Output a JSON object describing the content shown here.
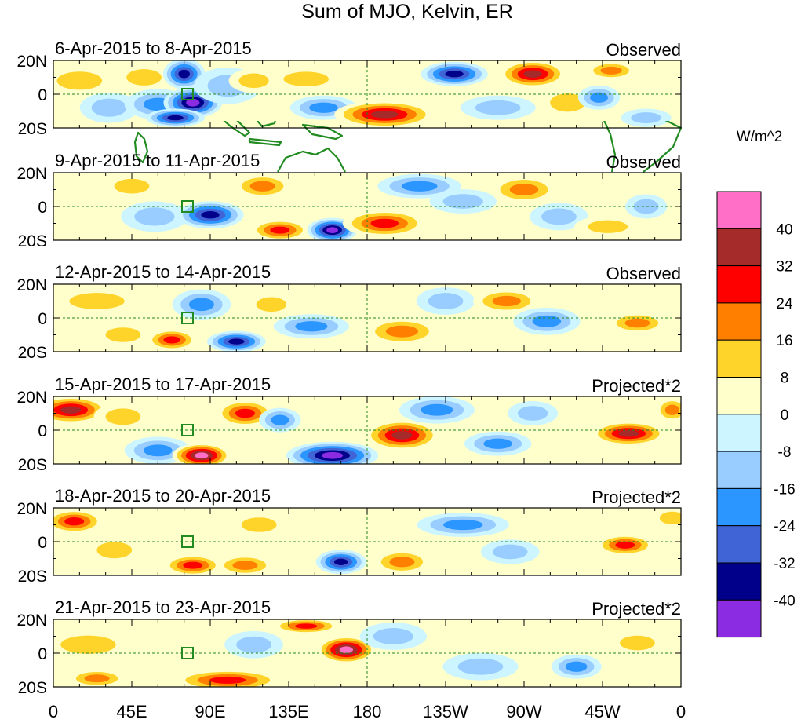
{
  "title": "Sum of MJO, Kelvin, ER",
  "lat_labels": [
    "20N",
    "0",
    "20S"
  ],
  "lon_labels": [
    "0",
    "45E",
    "90E",
    "135E",
    "180",
    "135W",
    "90W",
    "45W",
    "0"
  ],
  "panels": [
    {
      "date_range": "6-Apr-2015 to 8-Apr-2015",
      "status": "Observed"
    },
    {
      "date_range": "9-Apr-2015 to 11-Apr-2015",
      "status": "Observed"
    },
    {
      "date_range": "12-Apr-2015 to 14-Apr-2015",
      "status": "Observed"
    },
    {
      "date_range": "15-Apr-2015 to 17-Apr-2015",
      "status": "Projected*2"
    },
    {
      "date_range": "18-Apr-2015 to 20-Apr-2015",
      "status": "Projected*2"
    },
    {
      "date_range": "21-Apr-2015 to 23-Apr-2015",
      "status": "Projected*2"
    }
  ],
  "colorbar": {
    "units": "W/m^2",
    "levels": [
      "40",
      "32",
      "24",
      "16",
      "8",
      "0",
      "-8",
      "-16",
      "-24",
      "-32",
      "-40"
    ],
    "colors": [
      "#ff6ec7",
      "#a52a2a",
      "#ff0000",
      "#ff7f00",
      "#ffd42a",
      "#ffffcc",
      "#ccf5ff",
      "#99ccff",
      "#2b96ff",
      "#4064d6",
      "#00008b",
      "#8b2be2"
    ]
  },
  "coast_color": "#228b22",
  "anomalies": [
    [
      {
        "lon": 15,
        "lat": 8,
        "w": 18,
        "h": 10,
        "v": 10
      },
      {
        "lon": 32,
        "lat": -8,
        "w": 14,
        "h": 10,
        "v": -12
      },
      {
        "lon": 52,
        "lat": 10,
        "w": 14,
        "h": 9,
        "v": 12
      },
      {
        "lon": 60,
        "lat": -6,
        "w": 16,
        "h": 10,
        "v": -24
      },
      {
        "lon": 75,
        "lat": 12,
        "w": 10,
        "h": 10,
        "v": -36
      },
      {
        "lon": 80,
        "lat": -5,
        "w": 14,
        "h": 10,
        "v": -42
      },
      {
        "lon": 70,
        "lat": -14,
        "w": 14,
        "h": 6,
        "v": -34
      },
      {
        "lon": 100,
        "lat": 5,
        "w": 16,
        "h": 12,
        "v": -12
      },
      {
        "lon": 115,
        "lat": 8,
        "w": 12,
        "h": 8,
        "v": 10
      },
      {
        "lon": 145,
        "lat": 9,
        "w": 18,
        "h": 8,
        "v": 14
      },
      {
        "lon": 155,
        "lat": -8,
        "w": 16,
        "h": 8,
        "v": -18
      },
      {
        "lon": 190,
        "lat": -12,
        "w": 24,
        "h": 9,
        "v": 34
      },
      {
        "lon": 230,
        "lat": 12,
        "w": 16,
        "h": 8,
        "v": -34
      },
      {
        "lon": 255,
        "lat": -8,
        "w": 18,
        "h": 8,
        "v": -14
      },
      {
        "lon": 275,
        "lat": 12,
        "w": 16,
        "h": 9,
        "v": 36
      },
      {
        "lon": 295,
        "lat": -5,
        "w": 14,
        "h": 10,
        "v": 12
      },
      {
        "lon": 313,
        "lat": -2,
        "w": 10,
        "h": 8,
        "v": -20
      },
      {
        "lon": 320,
        "lat": 14,
        "w": 12,
        "h": 6,
        "v": 18
      },
      {
        "lon": 340,
        "lat": -14,
        "w": 12,
        "h": 6,
        "v": -14
      }
    ],
    [
      {
        "lon": 20,
        "lat": 12,
        "w": 16,
        "h": 8,
        "v": 8
      },
      {
        "lon": 45,
        "lat": 12,
        "w": 14,
        "h": 8,
        "v": 12
      },
      {
        "lon": 58,
        "lat": -6,
        "w": 16,
        "h": 10,
        "v": -14
      },
      {
        "lon": 90,
        "lat": -5,
        "w": 16,
        "h": 9,
        "v": -36
      },
      {
        "lon": 120,
        "lat": 12,
        "w": 14,
        "h": 8,
        "v": 20
      },
      {
        "lon": 130,
        "lat": -14,
        "w": 14,
        "h": 7,
        "v": 26
      },
      {
        "lon": 160,
        "lat": -14,
        "w": 12,
        "h": 8,
        "v": -42
      },
      {
        "lon": 190,
        "lat": -10,
        "w": 20,
        "h": 9,
        "v": 28
      },
      {
        "lon": 210,
        "lat": 12,
        "w": 20,
        "h": 8,
        "v": -20
      },
      {
        "lon": 235,
        "lat": 3,
        "w": 16,
        "h": 8,
        "v": -14
      },
      {
        "lon": 270,
        "lat": 10,
        "w": 16,
        "h": 9,
        "v": 24
      },
      {
        "lon": 290,
        "lat": -6,
        "w": 14,
        "h": 9,
        "v": -12
      },
      {
        "lon": 318,
        "lat": -12,
        "w": 16,
        "h": 7,
        "v": 14
      },
      {
        "lon": 340,
        "lat": 0,
        "w": 10,
        "h": 8,
        "v": -10
      }
    ],
    [
      {
        "lon": 25,
        "lat": 10,
        "w": 22,
        "h": 9,
        "v": 16
      },
      {
        "lon": 40,
        "lat": -10,
        "w": 14,
        "h": 8,
        "v": 10
      },
      {
        "lon": 68,
        "lat": -13,
        "w": 12,
        "h": 7,
        "v": 28
      },
      {
        "lon": 85,
        "lat": 8,
        "w": 14,
        "h": 10,
        "v": -20
      },
      {
        "lon": 105,
        "lat": -14,
        "w": 14,
        "h": 7,
        "v": -34
      },
      {
        "lon": 125,
        "lat": 8,
        "w": 12,
        "h": 8,
        "v": 12
      },
      {
        "lon": 148,
        "lat": -5,
        "w": 18,
        "h": 8,
        "v": -24
      },
      {
        "lon": 200,
        "lat": -8,
        "w": 18,
        "h": 9,
        "v": 22
      },
      {
        "lon": 225,
        "lat": 10,
        "w": 14,
        "h": 9,
        "v": -16
      },
      {
        "lon": 260,
        "lat": 10,
        "w": 16,
        "h": 8,
        "v": 18
      },
      {
        "lon": 283,
        "lat": -2,
        "w": 16,
        "h": 9,
        "v": -18
      },
      {
        "lon": 335,
        "lat": -3,
        "w": 14,
        "h": 7,
        "v": 22
      }
    ],
    [
      {
        "lon": 10,
        "lat": 12,
        "w": 18,
        "h": 9,
        "v": 36
      },
      {
        "lon": 40,
        "lat": 8,
        "w": 14,
        "h": 9,
        "v": 14
      },
      {
        "lon": 60,
        "lat": -12,
        "w": 16,
        "h": 9,
        "v": -18
      },
      {
        "lon": 85,
        "lat": -15,
        "w": 14,
        "h": 8,
        "v": 42
      },
      {
        "lon": 110,
        "lat": 10,
        "w": 14,
        "h": 9,
        "v": 30
      },
      {
        "lon": 130,
        "lat": 6,
        "w": 10,
        "h": 8,
        "v": -18
      },
      {
        "lon": 160,
        "lat": -15,
        "w": 22,
        "h": 9,
        "v": -48
      },
      {
        "lon": 200,
        "lat": -3,
        "w": 18,
        "h": 10,
        "v": 38
      },
      {
        "lon": 220,
        "lat": 12,
        "w": 18,
        "h": 9,
        "v": -24
      },
      {
        "lon": 255,
        "lat": -8,
        "w": 16,
        "h": 8,
        "v": -20
      },
      {
        "lon": 275,
        "lat": 10,
        "w": 12,
        "h": 8,
        "v": -12
      },
      {
        "lon": 330,
        "lat": -2,
        "w": 18,
        "h": 8,
        "v": 36
      },
      {
        "lon": 355,
        "lat": 12,
        "w": 8,
        "h": 8,
        "v": 22
      }
    ],
    [
      {
        "lon": 12,
        "lat": 12,
        "w": 14,
        "h": 8,
        "v": 28
      },
      {
        "lon": 35,
        "lat": -5,
        "w": 14,
        "h": 9,
        "v": 14
      },
      {
        "lon": 80,
        "lat": -14,
        "w": 14,
        "h": 7,
        "v": 30
      },
      {
        "lon": 110,
        "lat": -14,
        "w": 14,
        "h": 7,
        "v": 20
      },
      {
        "lon": 118,
        "lat": 10,
        "w": 14,
        "h": 8,
        "v": 16
      },
      {
        "lon": 165,
        "lat": -12,
        "w": 12,
        "h": 8,
        "v": -38
      },
      {
        "lon": 200,
        "lat": -12,
        "w": 14,
        "h": 8,
        "v": 20
      },
      {
        "lon": 235,
        "lat": 10,
        "w": 22,
        "h": 8,
        "v": -18
      },
      {
        "lon": 262,
        "lat": -6,
        "w": 14,
        "h": 8,
        "v": -12
      },
      {
        "lon": 328,
        "lat": -2,
        "w": 14,
        "h": 7,
        "v": 30
      },
      {
        "lon": 355,
        "lat": 14,
        "w": 10,
        "h": 7,
        "v": 16
      }
    ],
    [
      {
        "lon": 20,
        "lat": 5,
        "w": 22,
        "h": 10,
        "v": 14
      },
      {
        "lon": 25,
        "lat": -15,
        "w": 14,
        "h": 6,
        "v": 18
      },
      {
        "lon": 100,
        "lat": -16,
        "w": 26,
        "h": 7,
        "v": 32
      },
      {
        "lon": 115,
        "lat": 5,
        "w": 14,
        "h": 9,
        "v": -14
      },
      {
        "lon": 145,
        "lat": 16,
        "w": 16,
        "h": 5,
        "v": 26
      },
      {
        "lon": 168,
        "lat": 2,
        "w": 14,
        "h": 9,
        "v": 44
      },
      {
        "lon": 195,
        "lat": 10,
        "w": 16,
        "h": 9,
        "v": -16
      },
      {
        "lon": 245,
        "lat": -8,
        "w": 18,
        "h": 9,
        "v": -14
      },
      {
        "lon": 300,
        "lat": -8,
        "w": 12,
        "h": 8,
        "v": -22
      },
      {
        "lon": 335,
        "lat": 6,
        "w": 14,
        "h": 8,
        "v": 12
      }
    ]
  ]
}
